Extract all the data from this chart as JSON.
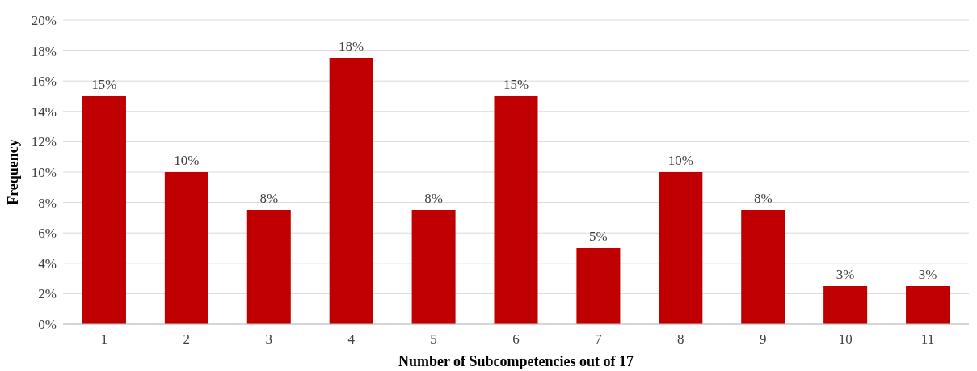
{
  "chart_data": {
    "type": "bar",
    "xlabel": "Number of Subcompetencies out of 17",
    "ylabel": "Frequency",
    "categories": [
      "1",
      "2",
      "3",
      "4",
      "5",
      "6",
      "7",
      "8",
      "9",
      "10",
      "11"
    ],
    "values": [
      15,
      10,
      7.5,
      17.5,
      7.5,
      15,
      5,
      10,
      7.5,
      2.5,
      2.5
    ],
    "value_labels": [
      "15%",
      "10%",
      "8%",
      "18%",
      "8%",
      "15%",
      "5%",
      "10%",
      "8%",
      "3%",
      "3%"
    ],
    "color": "#c00000",
    "ylim": [
      0,
      20
    ],
    "yticks": [
      {
        "value": 0,
        "label": "0%"
      },
      {
        "value": 2,
        "label": "2%"
      },
      {
        "value": 4,
        "label": "4%"
      },
      {
        "value": 6,
        "label": "6%"
      },
      {
        "value": 8,
        "label": "8%"
      },
      {
        "value": 10,
        "label": "10%"
      },
      {
        "value": 12,
        "label": "12%"
      },
      {
        "value": 14,
        "label": "14%"
      },
      {
        "value": 16,
        "label": "16%"
      },
      {
        "value": 18,
        "label": "18%"
      },
      {
        "value": 20,
        "label": "20%"
      }
    ],
    "grid": "y"
  }
}
